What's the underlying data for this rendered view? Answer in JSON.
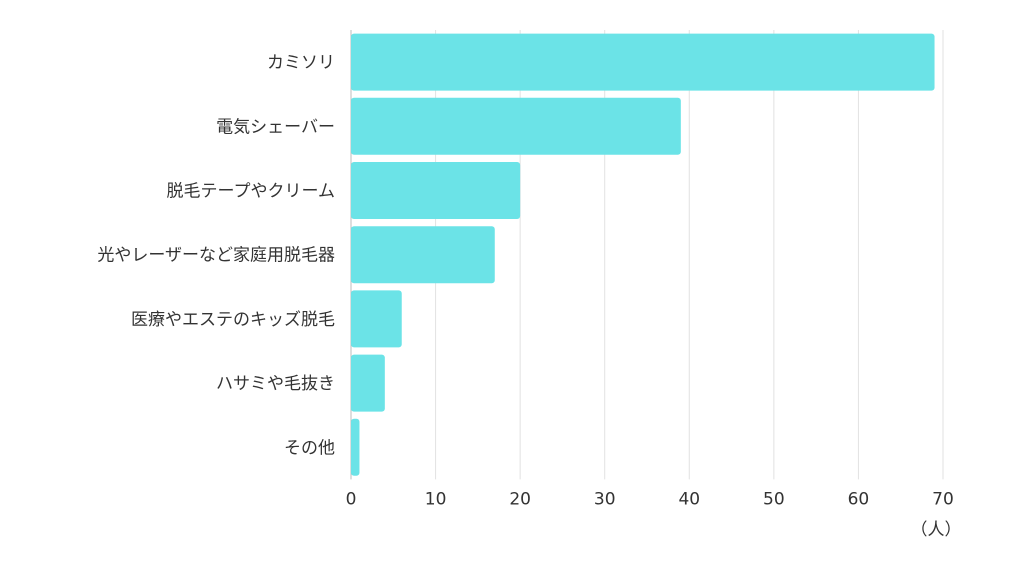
{
  "chart_data": {
    "type": "bar",
    "orientation": "horizontal",
    "categories": [
      "カミソリ",
      "電気シェーバー",
      "脱毛テープやクリーム",
      "光やレーザーなど家庭用脱毛器",
      "医療やエステのキッズ脱毛",
      "ハサミや毛抜き",
      "その他"
    ],
    "values": [
      69,
      39,
      20,
      17,
      6,
      4,
      1
    ],
    "xlim": [
      0,
      70
    ],
    "xticks": [
      0,
      10,
      20,
      30,
      40,
      50,
      60,
      70
    ],
    "unit_label": "（人）",
    "grid": true,
    "bar_color": "#6be3e7"
  }
}
